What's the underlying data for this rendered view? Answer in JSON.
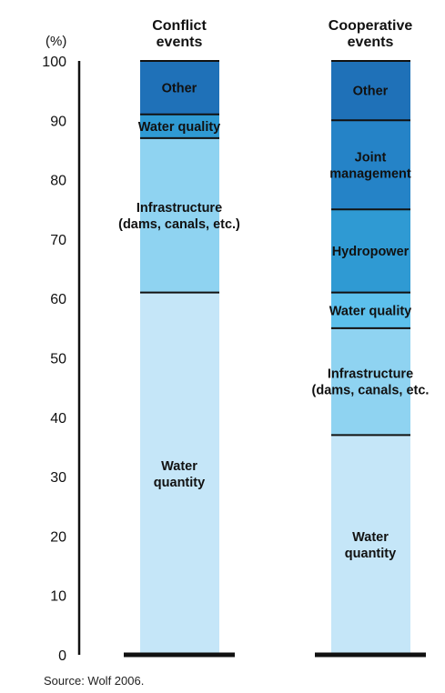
{
  "chart_data": {
    "type": "bar",
    "stacked": true,
    "unit_label": "(%)",
    "ylim": [
      0,
      100
    ],
    "yticks": [
      0,
      10,
      20,
      30,
      40,
      50,
      60,
      70,
      80,
      90,
      100
    ],
    "categories": [
      "Conflict events",
      "Cooperative events"
    ],
    "category_lines": [
      [
        "Conflict",
        "events"
      ],
      [
        "Cooperative",
        "events"
      ]
    ],
    "segments": [
      [
        {
          "lines": [
            "Water",
            "quantity"
          ],
          "from": 0,
          "to": 61,
          "color": "#c5e6f8"
        },
        {
          "lines": [
            "Infrastructure",
            "(dams, canals, etc.)"
          ],
          "from": 61,
          "to": 87,
          "color": "#8fd3f1"
        },
        {
          "lines": [
            "Water quality"
          ],
          "from": 87,
          "to": 91,
          "color": "#2f9ad3"
        },
        {
          "lines": [
            "Other"
          ],
          "from": 91,
          "to": 100,
          "color": "#1f71b8"
        }
      ],
      [
        {
          "lines": [
            "Water",
            "quantity"
          ],
          "from": 0,
          "to": 37,
          "color": "#c5e6f8"
        },
        {
          "lines": [
            "Infrastructure",
            "(dams, canals, etc."
          ],
          "from": 37,
          "to": 55,
          "color": "#8fd3f1"
        },
        {
          "lines": [
            "Water quality"
          ],
          "from": 55,
          "to": 61,
          "color": "#5cc0ec"
        },
        {
          "lines": [
            "Hydropower"
          ],
          "from": 61,
          "to": 75,
          "color": "#2f9ad3"
        },
        {
          "lines": [
            "Joint",
            "management"
          ],
          "from": 75,
          "to": 90,
          "color": "#2583c7"
        },
        {
          "lines": [
            "Other"
          ],
          "from": 90,
          "to": 100,
          "color": "#1f71b8"
        }
      ]
    ],
    "grid": false,
    "legend": "none"
  },
  "source": "Source: Wolf 2006."
}
